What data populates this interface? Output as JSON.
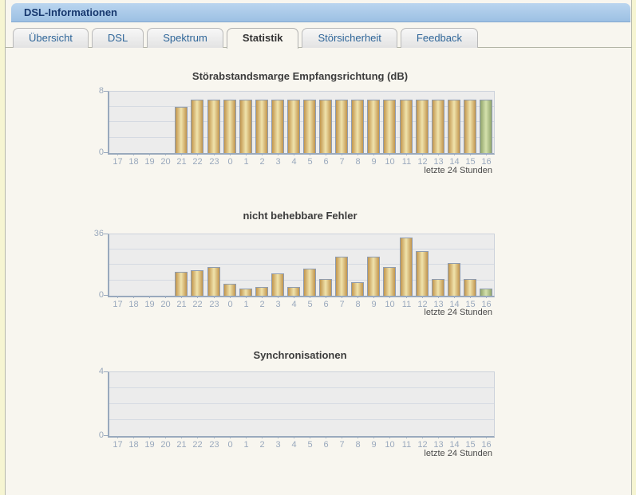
{
  "window": {
    "title": "DSL-Informationen"
  },
  "tabs": [
    {
      "label": "Übersicht",
      "active": false
    },
    {
      "label": "DSL",
      "active": false
    },
    {
      "label": "Spektrum",
      "active": false
    },
    {
      "label": "Statistik",
      "active": true
    },
    {
      "label": "Störsicherheit",
      "active": false
    },
    {
      "label": "Feedback",
      "active": false
    }
  ],
  "colors": {
    "titlebar_top": "#bad5ef",
    "titlebar_bottom": "#9cc0e3",
    "title_text": "#17386e",
    "tab_text": "#2f6699",
    "panel_bg": "#f8f6ef",
    "page_bg": "#f6f5d2",
    "plot_bg": "#ececec",
    "axis": "#99a9bd",
    "tick_label": "#9aa9bd",
    "bar_gold_edge": "#c2964e",
    "bar_gold_center": "#f0e3ac",
    "bar_green_edge": "#91a56b",
    "bar_green_center": "#d5e1ad"
  },
  "chart_data": [
    {
      "type": "bar",
      "title": "Störabstandsmarge Empfangsrichtung (dB)",
      "categories": [
        "17",
        "18",
        "19",
        "20",
        "21",
        "22",
        "23",
        "0",
        "1",
        "2",
        "3",
        "4",
        "5",
        "6",
        "7",
        "8",
        "9",
        "10",
        "11",
        "12",
        "13",
        "14",
        "15",
        "16"
      ],
      "values": [
        0,
        0,
        0,
        0,
        6,
        7,
        7,
        7,
        7,
        7,
        7,
        7,
        7,
        7,
        7,
        7,
        7,
        7,
        7,
        7,
        7,
        7,
        7,
        7
      ],
      "ylim": [
        0,
        8
      ],
      "ymax_label": "8",
      "ymin_label": "0",
      "gridlines": [
        2,
        4,
        6
      ],
      "legend": "none",
      "grid": true,
      "current_bar_index": 23,
      "footer": "letzte 24 Stunden"
    },
    {
      "type": "bar",
      "title": "nicht behebbare Fehler",
      "categories": [
        "17",
        "18",
        "19",
        "20",
        "21",
        "22",
        "23",
        "0",
        "1",
        "2",
        "3",
        "4",
        "5",
        "6",
        "7",
        "8",
        "9",
        "10",
        "11",
        "12",
        "13",
        "14",
        "15",
        "16"
      ],
      "values": [
        0,
        0,
        0,
        0,
        14,
        15,
        17,
        7,
        4,
        5,
        13,
        5,
        16,
        10,
        23,
        8,
        23,
        17,
        34,
        26,
        10,
        19,
        10,
        4
      ],
      "ylim": [
        0,
        36
      ],
      "ymax_label": "36",
      "ymin_label": "0",
      "gridlines": [
        9,
        18,
        27
      ],
      "legend": "none",
      "grid": true,
      "current_bar_index": 23,
      "footer": "letzte 24 Stunden"
    },
    {
      "type": "bar",
      "title": "Synchronisationen",
      "categories": [
        "17",
        "18",
        "19",
        "20",
        "21",
        "22",
        "23",
        "0",
        "1",
        "2",
        "3",
        "4",
        "5",
        "6",
        "7",
        "8",
        "9",
        "10",
        "11",
        "12",
        "13",
        "14",
        "15",
        "16"
      ],
      "values": [
        0,
        0,
        0,
        0,
        0,
        0,
        0,
        0,
        0,
        0,
        0,
        0,
        0,
        0,
        0,
        0,
        0,
        0,
        0,
        0,
        0,
        0,
        0,
        0
      ],
      "ylim": [
        0,
        4
      ],
      "ymax_label": "4",
      "ymin_label": "0",
      "gridlines": [
        1,
        2,
        3
      ],
      "legend": "none",
      "grid": true,
      "current_bar_index": 23,
      "footer": "letzte 24 Stunden"
    }
  ]
}
